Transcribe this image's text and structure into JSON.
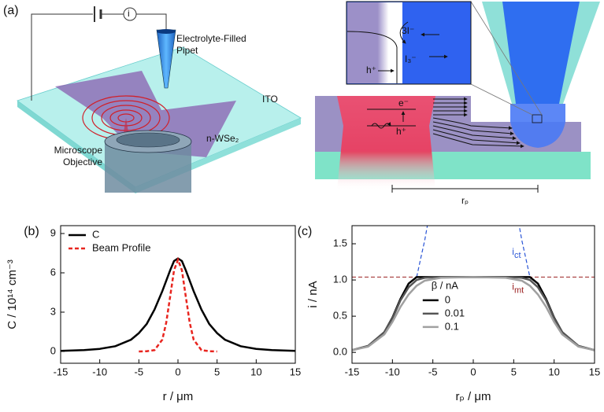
{
  "diagram": {
    "label": "(a)",
    "pipet": [
      "Electrolyte-Filled",
      "Pipet"
    ],
    "ito": "ITO",
    "film": "n-WSe₂",
    "objective": [
      "Microscope",
      "Objective"
    ],
    "meter": "i",
    "inset": {
      "reactant": "3I⁻",
      "product": "I₃⁻",
      "hole": "h⁺"
    },
    "carriers": {
      "electron": "e⁻",
      "hole": "h⁺"
    },
    "distance": "rₚ"
  },
  "chart_data": [
    {
      "type": "line",
      "label": "(b)",
      "xlabel": "r / μm",
      "ylabel": "C / 10¹⁴ cm⁻³",
      "xlim": [
        -15,
        15
      ],
      "xticks": [
        -15,
        -10,
        -5,
        0,
        5,
        10,
        15
      ],
      "ylim": [
        -0.9,
        9.6
      ],
      "yticks": [
        0,
        3,
        6,
        9
      ],
      "series": [
        {
          "name": "C",
          "color": "#000000",
          "dash": false,
          "x": [
            -15,
            -12,
            -10,
            -8,
            -6,
            -5,
            -4,
            -3,
            -2,
            -1,
            -0.5,
            0,
            0.5,
            1,
            2,
            3,
            4,
            5,
            6,
            8,
            10,
            12,
            15
          ],
          "values": [
            0.05,
            0.1,
            0.2,
            0.4,
            0.9,
            1.4,
            2.1,
            3.2,
            4.6,
            6.2,
            6.9,
            7.1,
            6.9,
            6.2,
            4.6,
            3.2,
            2.1,
            1.4,
            0.9,
            0.4,
            0.2,
            0.1,
            0.05
          ]
        },
        {
          "name": "Beam Profile",
          "color": "#e8251f",
          "dash": true,
          "x": [
            -5,
            -4,
            -3,
            -2,
            -1.5,
            -1,
            -0.5,
            0,
            0.5,
            1,
            1.5,
            2,
            3,
            4,
            5
          ],
          "values": [
            0,
            0.02,
            0.1,
            0.9,
            2.2,
            4.2,
            6.2,
            7.0,
            6.2,
            4.2,
            2.2,
            0.9,
            0.1,
            0.02,
            0
          ]
        }
      ]
    },
    {
      "type": "line",
      "label": "(c)",
      "xlabel": "rₚ / μm",
      "ylabel": "i / nA",
      "xlim": [
        -15,
        15
      ],
      "xticks": [
        -15,
        -10,
        -5,
        0,
        5,
        10,
        15
      ],
      "ylim": [
        -0.15,
        1.75
      ],
      "yticks": [
        {
          "value": 0,
          "label": "0.0"
        },
        0.5,
        {
          "value": 1,
          "label": "1.0"
        },
        1.5
      ],
      "legend_title": "β / nA",
      "x": [
        -15,
        -13,
        -11,
        -10,
        -9,
        -8,
        -7,
        -6,
        -4,
        0,
        4,
        6,
        7,
        8,
        9,
        10,
        11,
        13,
        15
      ],
      "series": [
        {
          "name": "0",
          "color": "#000000",
          "values": [
            0.03,
            0.09,
            0.28,
            0.48,
            0.74,
            0.95,
            1.04,
            1.04,
            1.04,
            1.04,
            1.04,
            1.04,
            1.04,
            0.95,
            0.74,
            0.48,
            0.28,
            0.09,
            0.03
          ]
        },
        {
          "name": "0.01",
          "color": "#555555",
          "values": [
            0.03,
            0.09,
            0.28,
            0.47,
            0.72,
            0.9,
            1.0,
            1.03,
            1.04,
            1.04,
            1.04,
            1.03,
            1.0,
            0.9,
            0.72,
            0.47,
            0.28,
            0.09,
            0.03
          ]
        },
        {
          "name": "0.1",
          "color": "#a0a0a0",
          "values": [
            0.03,
            0.08,
            0.25,
            0.42,
            0.63,
            0.8,
            0.92,
            0.99,
            1.03,
            1.04,
            1.03,
            0.99,
            0.92,
            0.8,
            0.63,
            0.42,
            0.25,
            0.08,
            0.03
          ]
        }
      ],
      "ict": {
        "text": "i",
        "sub": "ct",
        "color": "#2a55d6",
        "x": [
          -7,
          -6.5,
          -6,
          -5.6,
          null,
          5.6,
          6,
          6.5,
          7
        ],
        "values": [
          1.04,
          1.3,
          1.55,
          1.8,
          null,
          1.8,
          1.55,
          1.3,
          1.04
        ]
      },
      "imt": {
        "text": "i",
        "sub": "mt",
        "color": "#9b2020",
        "value": 1.04
      }
    }
  ]
}
